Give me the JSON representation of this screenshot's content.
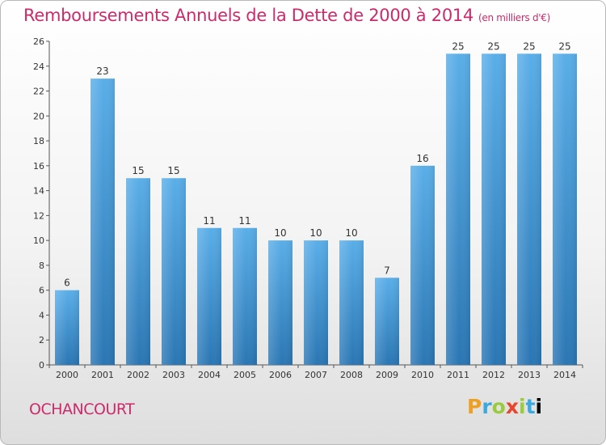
{
  "header": {
    "title": "Remboursements Annuels de la Dette de 2000 à 2014",
    "unit": "(en milliers d'€)"
  },
  "footer": {
    "commune": "OCHANCOURT",
    "logo": [
      "P",
      "r",
      "o",
      "x",
      "i",
      "t",
      "i"
    ]
  },
  "colors": {
    "title": "#cc2a6b",
    "bar_top": "#5aaee8",
    "bar_bottom": "#2a76b4"
  },
  "chart_data": {
    "type": "bar",
    "categories": [
      "2000",
      "2001",
      "2002",
      "2003",
      "2004",
      "2005",
      "2006",
      "2007",
      "2008",
      "2009",
      "2010",
      "2011",
      "2012",
      "2013",
      "2014"
    ],
    "values": [
      6,
      23,
      15,
      15,
      11,
      11,
      10,
      10,
      10,
      7,
      16,
      25,
      25,
      25,
      25
    ],
    "title": "Remboursements Annuels de la Dette de 2000 à 2014",
    "xlabel": "",
    "ylabel": "",
    "ylim": [
      0,
      26
    ],
    "yticks": [
      0,
      2,
      4,
      6,
      8,
      10,
      12,
      14,
      16,
      18,
      20,
      22,
      24,
      26
    ],
    "grid": false,
    "legend": "none"
  }
}
